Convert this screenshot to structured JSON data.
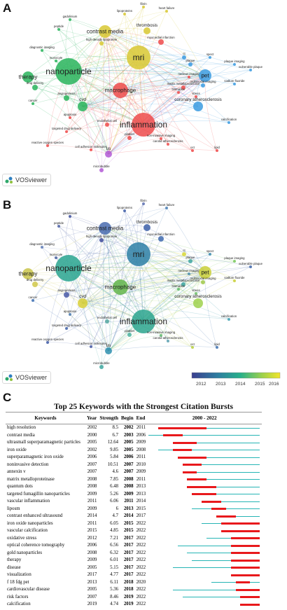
{
  "panels": {
    "a_label": "A",
    "b_label": "B",
    "c_label": "C"
  },
  "vosviewer": {
    "label": "VOSviewer"
  },
  "network_keywords": [
    "fibrin",
    "heart failure",
    "lipoproteins",
    "gadolinium",
    "peptide",
    "thrombosis",
    "contrast media",
    "myocardial infarction",
    "high-density lipoprotein",
    "diagnostic imaging",
    "monocyte",
    "mri",
    "ct",
    "plaque",
    "spect",
    "plaque imaging",
    "nanoparticle",
    "nucleus imaging",
    "therapy",
    "macrophage",
    "matrix metalloproteinase",
    "pet",
    "multimodal imaging",
    "sodium fluoride",
    "drug delivery",
    "biomarker",
    "stress",
    "cancer",
    "angiogenesis",
    "cvd",
    "coronary atherosclerosis",
    "inflammation",
    "calcification",
    "apoptosis",
    "targeted drug delivery",
    "endothelial cell",
    "platelet",
    "non-invasive imaging",
    "carotid atherosclerosis",
    "reactive oxygen species",
    "cell adhesion molecules",
    "us",
    "oct",
    "microbubble",
    "vulnerable plaque",
    "lipid"
  ],
  "overlay_scale": {
    "ticks": [
      "2012",
      "2013",
      "2014",
      "2015",
      "2016"
    ]
  },
  "bursts": {
    "title": "Top 25 Keywords with the Strongest Citation Bursts",
    "headers": {
      "keywords": "Keywords",
      "year": "Year",
      "strength": "Strength",
      "begin": "Begin",
      "end": "End",
      "range": "2000 - 2022"
    },
    "range_start": 2000,
    "range_end": 2022,
    "rows": [
      {
        "kw": "high resolution",
        "year": "2002",
        "strength": "8.5",
        "begin": "2002",
        "end": "2011"
      },
      {
        "kw": "contrast media",
        "year": "2000",
        "strength": "6.7",
        "begin": "2003",
        "end": "2006"
      },
      {
        "kw": "ultrasmall superparamagnetic particles",
        "year": "2005",
        "strength": "12.64",
        "begin": "2005",
        "end": "2009"
      },
      {
        "kw": "iron oxide",
        "year": "2002",
        "strength": "9.85",
        "begin": "2005",
        "end": "2008"
      },
      {
        "kw": "superparamagnetic iron oxide",
        "year": "2006",
        "strength": "5.84",
        "begin": "2006",
        "end": "2011"
      },
      {
        "kw": "noninvasive detection",
        "year": "2007",
        "strength": "10.51",
        "begin": "2007",
        "end": "2010"
      },
      {
        "kw": "annexin v",
        "year": "2007",
        "strength": "4.6",
        "begin": "2007",
        "end": "2009"
      },
      {
        "kw": "matrix metalloproteinase",
        "year": "2008",
        "strength": "7.85",
        "begin": "2008",
        "end": "2011"
      },
      {
        "kw": "quantum dots",
        "year": "2008",
        "strength": "6.48",
        "begin": "2008",
        "end": "2013"
      },
      {
        "kw": "targeted fumagillin nanoparticles",
        "year": "2009",
        "strength": "5.26",
        "begin": "2009",
        "end": "2013"
      },
      {
        "kw": "vascular inflammation",
        "year": "2011",
        "strength": "6.06",
        "begin": "2011",
        "end": "2014"
      },
      {
        "kw": "liposm",
        "year": "2009",
        "strength": "6",
        "begin": "2013",
        "end": "2015"
      },
      {
        "kw": "contrast enhanced ultrasound",
        "year": "2014",
        "strength": "4.7",
        "begin": "2014",
        "end": "2017"
      },
      {
        "kw": "iron oxide nanoparticles",
        "year": "2011",
        "strength": "6.05",
        "begin": "2015",
        "end": "2022"
      },
      {
        "kw": "vascular calcification",
        "year": "2015",
        "strength": "4.85",
        "begin": "2015",
        "end": "2022"
      },
      {
        "kw": "oxidative stress",
        "year": "2012",
        "strength": "7.21",
        "begin": "2017",
        "end": "2022"
      },
      {
        "kw": "optical coherence tomography",
        "year": "2006",
        "strength": "6.56",
        "begin": "2017",
        "end": "2022"
      },
      {
        "kw": "gold nanoparticles",
        "year": "2008",
        "strength": "6.32",
        "begin": "2017",
        "end": "2022"
      },
      {
        "kw": "therapy",
        "year": "2009",
        "strength": "6.01",
        "begin": "2017",
        "end": "2022"
      },
      {
        "kw": "disease",
        "year": "2005",
        "strength": "5.15",
        "begin": "2017",
        "end": "2022"
      },
      {
        "kw": "visualization",
        "year": "2017",
        "strength": "4.77",
        "begin": "2017",
        "end": "2022"
      },
      {
        "kw": "f 18 fdg pet",
        "year": "2013",
        "strength": "6.11",
        "begin": "2018",
        "end": "2020"
      },
      {
        "kw": "cardiovascular disease",
        "year": "2005",
        "strength": "5.36",
        "begin": "2018",
        "end": "2022"
      },
      {
        "kw": "risk factors",
        "year": "2007",
        "strength": "8.46",
        "begin": "2019",
        "end": "2022"
      },
      {
        "kw": "calcification",
        "year": "2019",
        "year_alt": "",
        "strength": "4.74",
        "begin": "2019",
        "end": "2022"
      }
    ]
  },
  "colors": {
    "burst_red": "#e8191c",
    "burst_teal": "#26b5b5",
    "cluster_red": "#ef4b4b",
    "cluster_green": "#29b45c",
    "cluster_blue": "#3b9be0",
    "cluster_yellow": "#d8c832",
    "cluster_purple": "#b35bd6"
  }
}
